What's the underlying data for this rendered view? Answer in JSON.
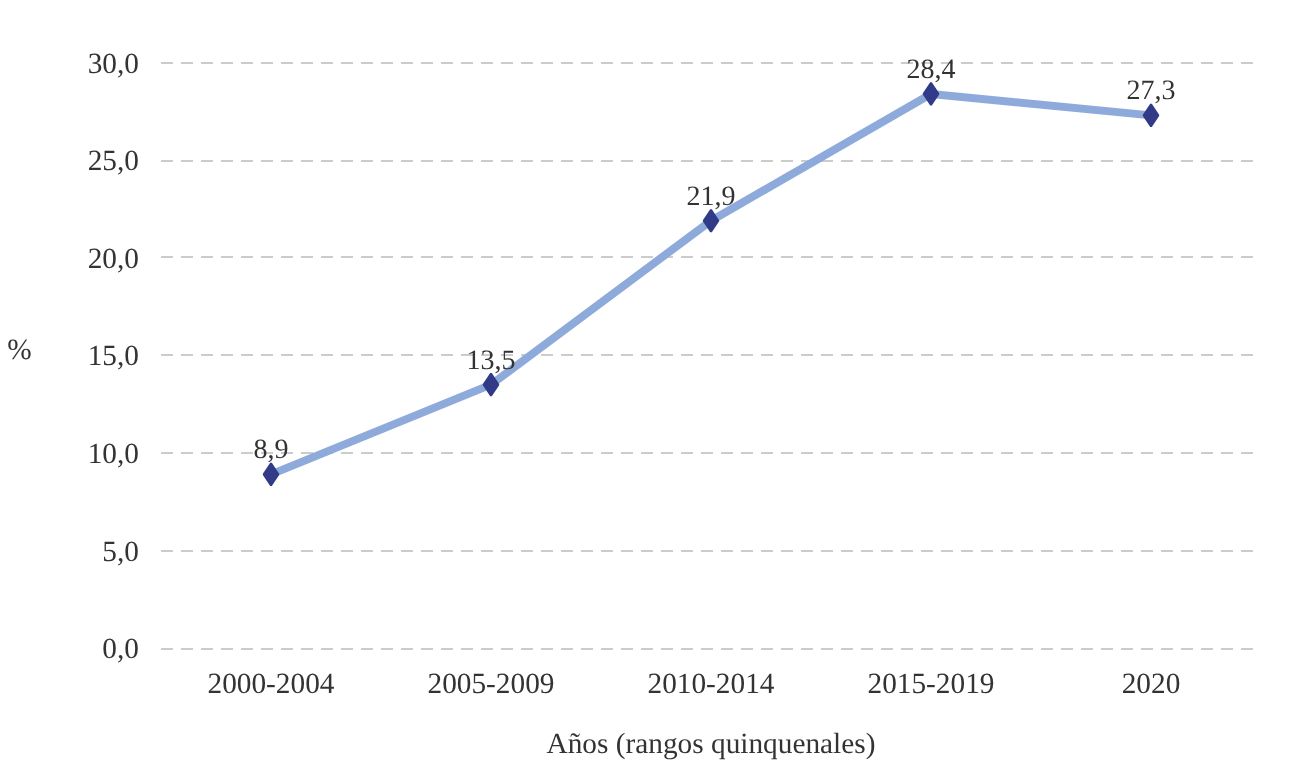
{
  "chart_data": {
    "type": "line",
    "xlabel": "Años (rangos quinquenales)",
    "ylabel": "%",
    "categories": [
      "2000-2004",
      "2005-2009",
      "2010-2014",
      "2015-2019",
      "2020"
    ],
    "series": [
      {
        "color": "#8eaadb",
        "values": [
          8.9,
          13.5,
          21.9,
          28.4,
          27.3
        ],
        "value_labels": [
          "8,9",
          "13,5",
          "21,9",
          "28,4",
          "27,3"
        ]
      }
    ],
    "ylim": [
      0,
      30
    ],
    "yticks": [
      {
        "value": 0,
        "label": "0,0"
      },
      {
        "value": 5,
        "label": "5,0"
      },
      {
        "value": 10,
        "label": "10,0"
      },
      {
        "value": 15,
        "label": "15,0"
      },
      {
        "value": 20,
        "label": "20,0"
      },
      {
        "value": 25,
        "label": "25,0"
      },
      {
        "value": 30,
        "label": "30,0"
      }
    ],
    "grid": "y",
    "marker": "diamond",
    "line_style": "solid"
  }
}
